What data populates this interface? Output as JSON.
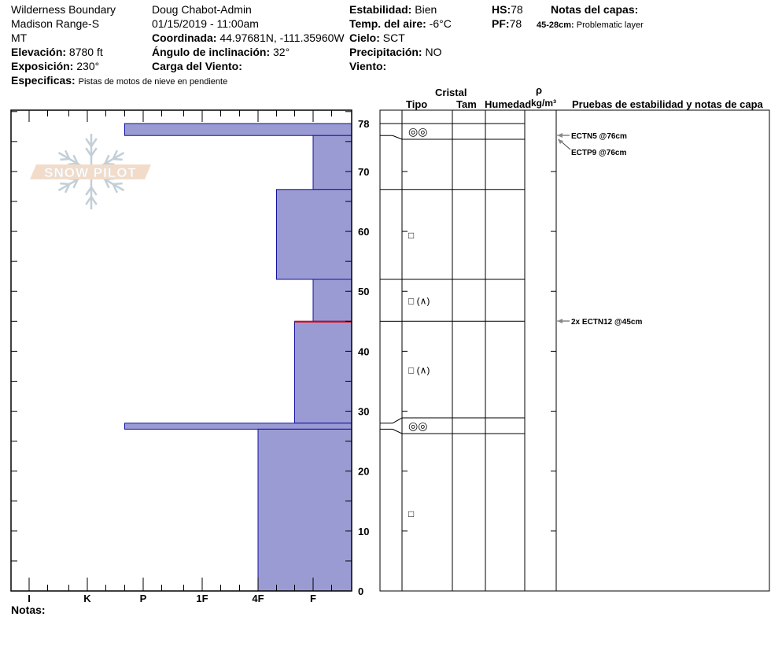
{
  "header": {
    "location": "Wilderness Boundary",
    "range": "Madison Range-S",
    "state": "MT",
    "elevation_label": "Elevación:",
    "elevation": "8780 ft",
    "aspect_label": "Exposición:",
    "aspect": "230°",
    "specifics_label": "Especificas:",
    "specifics": "Pistas de motos de nieve en pendiente",
    "observer": "Doug Chabot-Admin",
    "datetime": "01/15/2019 - 11:00am",
    "coord_label": "Coordinada:",
    "coord": "44.97681N, -111.35960W",
    "slope_label": "Ángulo de inclinación:",
    "slope": "32°",
    "windload_label": "Carga del Viento:",
    "windload": "",
    "stability_label": "Estabilidad:",
    "stability": "Bien",
    "airtemp_label": "Temp. del aire:",
    "airtemp": "-6°C",
    "sky_label": "Cielo:",
    "sky": "SCT",
    "precip_label": "Precipitación:",
    "precip": "NO",
    "wind_label": "Viento:",
    "wind": "",
    "hs_label": "HS:",
    "hs": "78",
    "pf_label": "PF:",
    "pf": "78",
    "layer_notes_label": "Notas del capas:",
    "layer_note_range": "45-28cm:",
    "layer_note": "Problematic layer"
  },
  "logo": "SNOW PILOT",
  "notes_label": "Notas:",
  "table_headers": {
    "crystal": "Cristal",
    "type": "Tipo",
    "size": "Tam",
    "moisture": "Humedad",
    "rho": "ρ",
    "density_unit": "kg/m³",
    "tests": "Pruebas de estabilidad y notas de capa"
  },
  "colors": {
    "layer_fill": "#9b9bd4",
    "layer_edge": "#1010a0",
    "problem_layer": "#e00000"
  },
  "chart_data": {
    "type": "bar",
    "orientation": "horizontal",
    "xlabel": "",
    "ylabel": "",
    "x_ticks": [
      "I",
      "K",
      "P",
      "1F",
      "4F",
      "F"
    ],
    "y_ticks": [
      "78",
      "70",
      "60",
      "50",
      "40",
      "30",
      "20",
      "10",
      "0"
    ],
    "ylim": [
      0,
      78
    ],
    "layers": [
      {
        "bottom": 76,
        "top": 78,
        "hardness": "P+",
        "grain": "melt-forms-clustered-icon"
      },
      {
        "bottom": 67,
        "top": 76,
        "hardness": "F",
        "grain": ""
      },
      {
        "bottom": 52,
        "top": 67,
        "hardness": "4F-",
        "grain": "faceted-icon"
      },
      {
        "bottom": 45,
        "top": 52,
        "hardness": "F",
        "grain": "faceted-depth-hoar-icon"
      },
      {
        "bottom": 28,
        "top": 45,
        "hardness": "F+",
        "grain": "faceted-depth-hoar-icon"
      },
      {
        "bottom": 27,
        "top": 28,
        "hardness": "P+",
        "grain": "melt-forms-clustered-icon"
      },
      {
        "bottom": 0,
        "top": 27,
        "hardness": "4F",
        "grain": "faceted-icon"
      }
    ],
    "problem_interface_depth": 45,
    "tests": [
      {
        "label": "ECTN5 @76cm",
        "depth": 76
      },
      {
        "label": "ECTP9 @76cm",
        "depth": 76
      },
      {
        "label": "2x ECTN12 @45cm",
        "depth": 45
      }
    ],
    "grain_symbols": {
      "melt-forms-clustered-icon": "◎◎",
      "faceted-icon": "□",
      "faceted-depth-hoar-icon": "□ (∧)"
    }
  }
}
